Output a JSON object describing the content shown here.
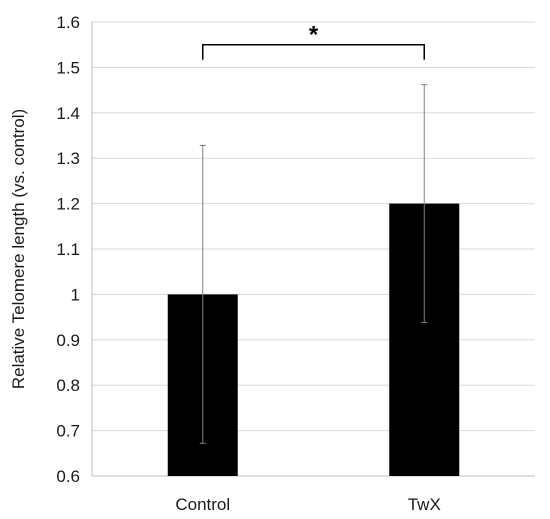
{
  "chart_data": {
    "type": "bar",
    "title": "",
    "xlabel": "",
    "ylabel": "Relative Telomere length (vs. control)",
    "categories": [
      "Control",
      "TwX"
    ],
    "series": [
      {
        "values": [
          1.0,
          1.2
        ],
        "error": [
          0.328,
          0.262
        ]
      }
    ],
    "ylim": [
      0.6,
      1.6
    ],
    "yticks": [
      0.6,
      0.7,
      0.8,
      0.9,
      1.0,
      1.1,
      1.2,
      1.3,
      1.4,
      1.5,
      1.6
    ],
    "ytick_labels": [
      "0.6",
      "0.7",
      "0.8",
      "0.9",
      "1",
      "1.1",
      "1.2",
      "1.3",
      "1.4",
      "1.5",
      "1.6"
    ],
    "grid": true,
    "legend": "none",
    "annotations": [
      {
        "type": "significance-bracket",
        "from": "Control",
        "to": "TwX",
        "y": 1.55,
        "text": "*"
      }
    ],
    "colors": {
      "bar": "#000000",
      "error_bar": "#808080",
      "grid": "#d9d9d9",
      "axis": "#bfbfbf",
      "bracket": "#000000"
    }
  }
}
